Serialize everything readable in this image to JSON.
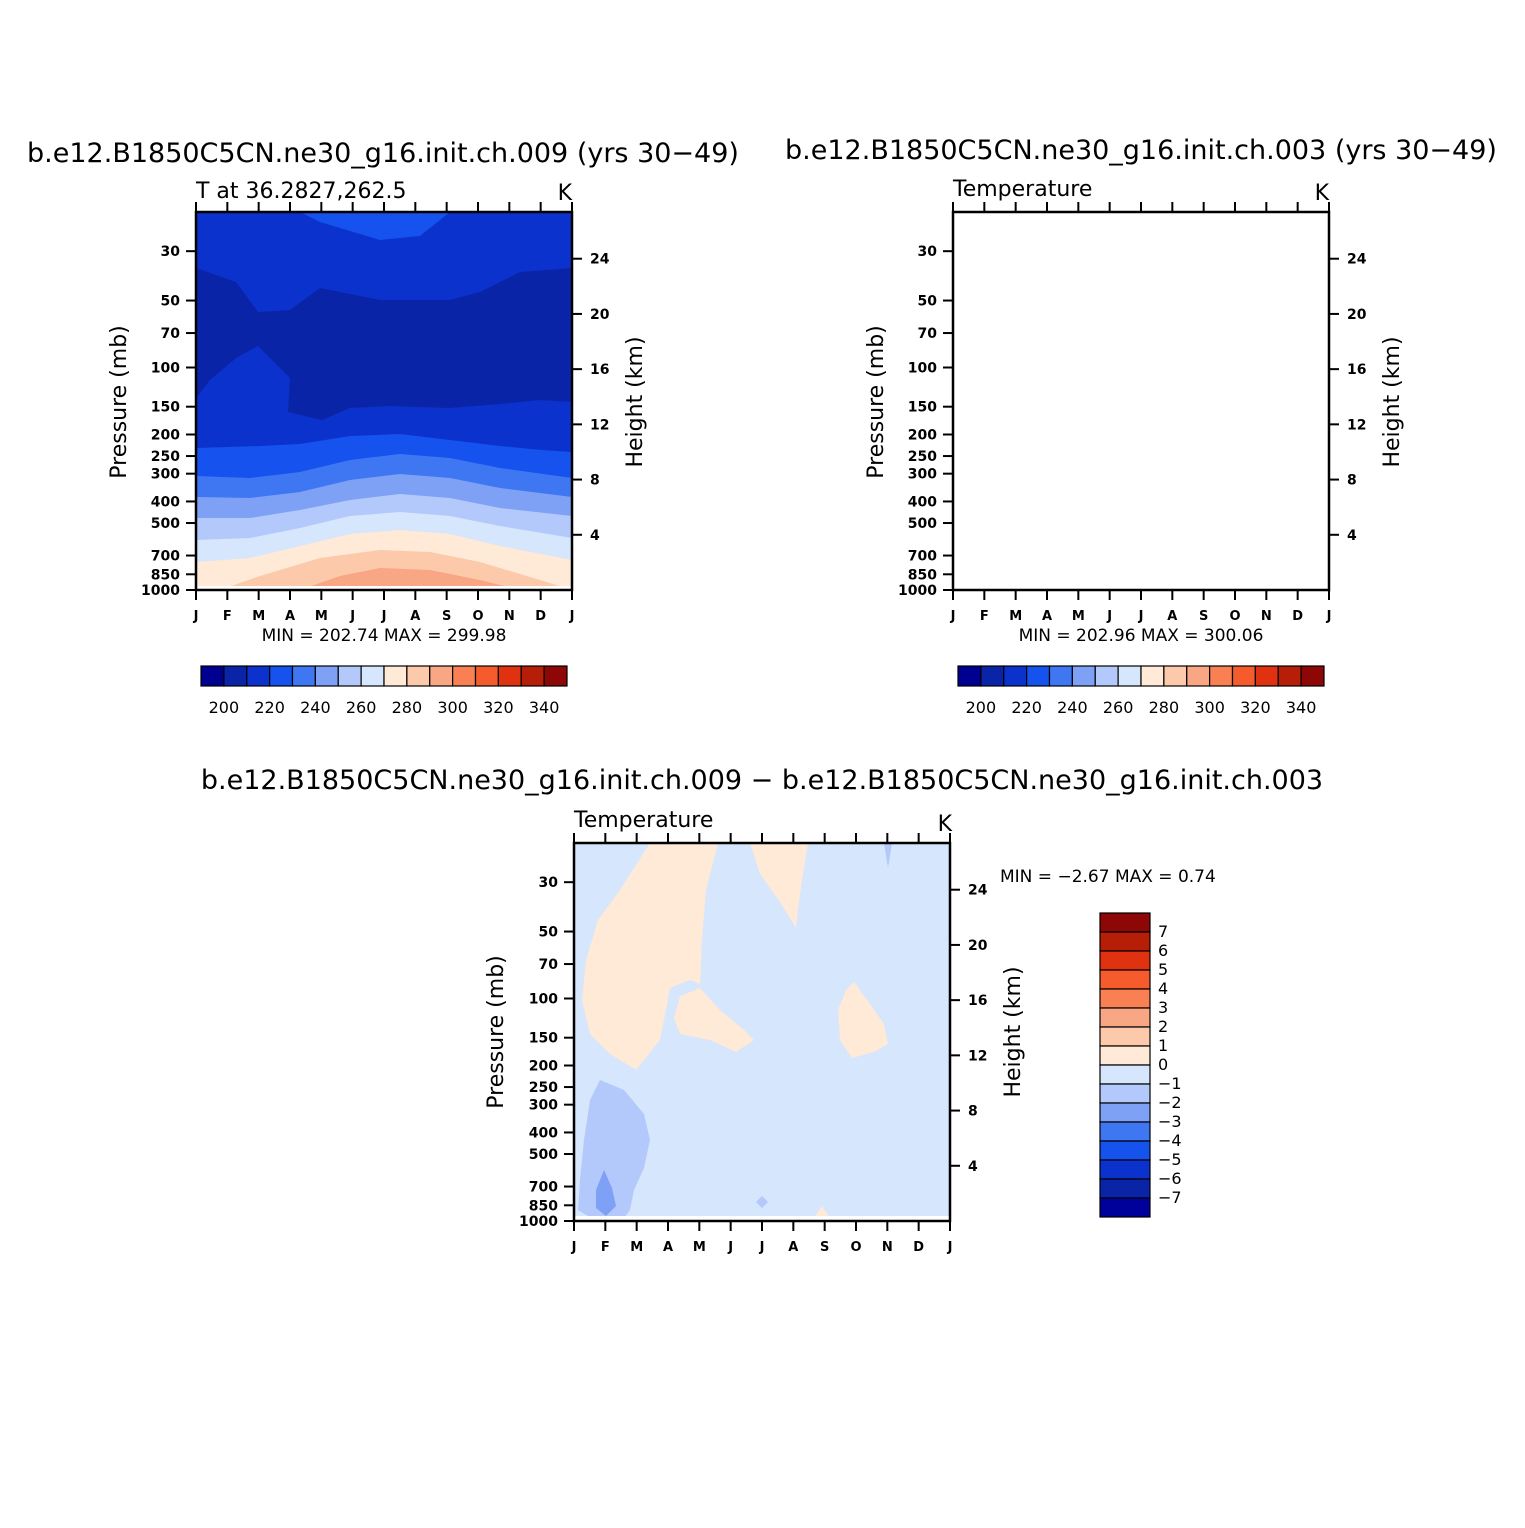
{
  "colors": {
    "abs_scale": [
      "#000090",
      "#0a24a8",
      "#0b32cc",
      "#1552ee",
      "#3f77f3",
      "#7ea1f5",
      "#b4c9fb",
      "#d6e6fd",
      "#ffe9d7",
      "#fcc9ab",
      "#f9a685",
      "#f88052",
      "#f55b2c",
      "#e03110",
      "#b61e08",
      "#8c0706"
    ],
    "diff_scale": [
      "#00009a",
      "#0a24a8",
      "#0b32cc",
      "#1552ee",
      "#3f77f3",
      "#7ea1f5",
      "#b4c9fb",
      "#d6e6fd",
      "#ffe9d7",
      "#fcc9ab",
      "#f9a685",
      "#f88052",
      "#f55b2c",
      "#e03110",
      "#b61e08",
      "#8c0706"
    ],
    "pos_fill": "#ffe9d7",
    "neg_fill": "#d6e6fd",
    "neg2_fill": "#b4c9fb",
    "neg3_fill": "#7ea1f5"
  },
  "chart_data": [
    {
      "type": "heatmap",
      "title": "b.e12.B1850C5CN.ne30_g16.init.ch.009 (yrs 30−49)",
      "left_label": "T at  36.2827,262.5",
      "right_label": "K",
      "ylabel": "Pressure (mb)",
      "y2label": "Height (km)",
      "x_ticks": [
        "J",
        "F",
        "M",
        "A",
        "M",
        "J",
        "J",
        "A",
        "S",
        "O",
        "N",
        "D",
        "J"
      ],
      "y_ticks": [
        "30",
        "50",
        "70",
        "100",
        "150",
        "200",
        "250",
        "300",
        "400",
        "500",
        "700",
        "850",
        "1000"
      ],
      "y_tick_values": [
        30,
        50,
        70,
        100,
        150,
        200,
        250,
        300,
        400,
        500,
        700,
        850,
        1000
      ],
      "y2_ticks": [
        "24",
        "20",
        "16",
        "12",
        "8",
        "4"
      ],
      "y2_tick_values": [
        24,
        20,
        16,
        12,
        8,
        4
      ],
      "ylim": [
        20,
        1000
      ],
      "stats": "MIN = 202.74  MAX = 299.98",
      "min": 202.74,
      "max": 299.98,
      "colorbar_labels": [
        "200",
        "220",
        "240",
        "260",
        "280",
        "300",
        "320",
        "340"
      ],
      "levels": [
        200,
        210,
        220,
        230,
        240,
        250,
        260,
        270,
        280,
        290,
        300,
        310,
        320,
        330,
        340
      ]
    },
    {
      "type": "heatmap",
      "title": "b.e12.B1850C5CN.ne30_g16.init.ch.003 (yrs 30−49)",
      "left_label": "Temperature",
      "right_label": "K",
      "ylabel": "Pressure (mb)",
      "y2label": "Height (km)",
      "x_ticks": [
        "J",
        "F",
        "M",
        "A",
        "M",
        "J",
        "J",
        "A",
        "S",
        "O",
        "N",
        "D",
        "J"
      ],
      "y_ticks": [
        "30",
        "50",
        "70",
        "100",
        "150",
        "200",
        "250",
        "300",
        "400",
        "500",
        "700",
        "850",
        "1000"
      ],
      "y_tick_values": [
        30,
        50,
        70,
        100,
        150,
        200,
        250,
        300,
        400,
        500,
        700,
        850,
        1000
      ],
      "y2_ticks": [
        "24",
        "20",
        "16",
        "12",
        "8",
        "4"
      ],
      "y2_tick_values": [
        24,
        20,
        16,
        12,
        8,
        4
      ],
      "ylim": [
        20,
        1000
      ],
      "stats": "MIN = 202.96  MAX = 300.06",
      "min": 202.96,
      "max": 300.06,
      "colorbar_labels": [
        "200",
        "220",
        "240",
        "260",
        "280",
        "300",
        "320",
        "340"
      ],
      "levels": [
        200,
        210,
        220,
        230,
        240,
        250,
        260,
        270,
        280,
        290,
        300,
        310,
        320,
        330,
        340
      ]
    },
    {
      "type": "heatmap",
      "title": "b.e12.B1850C5CN.ne30_g16.init.ch.009 − b.e12.B1850C5CN.ne30_g16.init.ch.003",
      "left_label": "Temperature",
      "right_label": "K",
      "ylabel": "Pressure (mb)",
      "y2label": "Height (km)",
      "x_ticks": [
        "J",
        "F",
        "M",
        "A",
        "M",
        "J",
        "J",
        "A",
        "S",
        "O",
        "N",
        "D",
        "J"
      ],
      "y_ticks": [
        "30",
        "50",
        "70",
        "100",
        "150",
        "200",
        "250",
        "300",
        "400",
        "500",
        "700",
        "850",
        "1000"
      ],
      "y_tick_values": [
        30,
        50,
        70,
        100,
        150,
        200,
        250,
        300,
        400,
        500,
        700,
        850,
        1000
      ],
      "y2_ticks": [
        "24",
        "20",
        "16",
        "12",
        "8",
        "4"
      ],
      "y2_tick_values": [
        24,
        20,
        16,
        12,
        8,
        4
      ],
      "ylim": [
        20,
        1000
      ],
      "stats": "MIN =    −2.67 MAX =     0.74",
      "min": -2.67,
      "max": 0.74,
      "colorbar_labels": [
        "7",
        "6",
        "5",
        "4",
        "3",
        "2",
        "1",
        "0",
        "−1",
        "−2",
        "−3",
        "−4",
        "−5",
        "−6",
        "−7"
      ],
      "levels": [
        -7,
        -6,
        -5,
        -4,
        -3,
        -2,
        -1,
        0,
        1,
        2,
        3,
        4,
        5,
        6,
        7
      ]
    }
  ]
}
